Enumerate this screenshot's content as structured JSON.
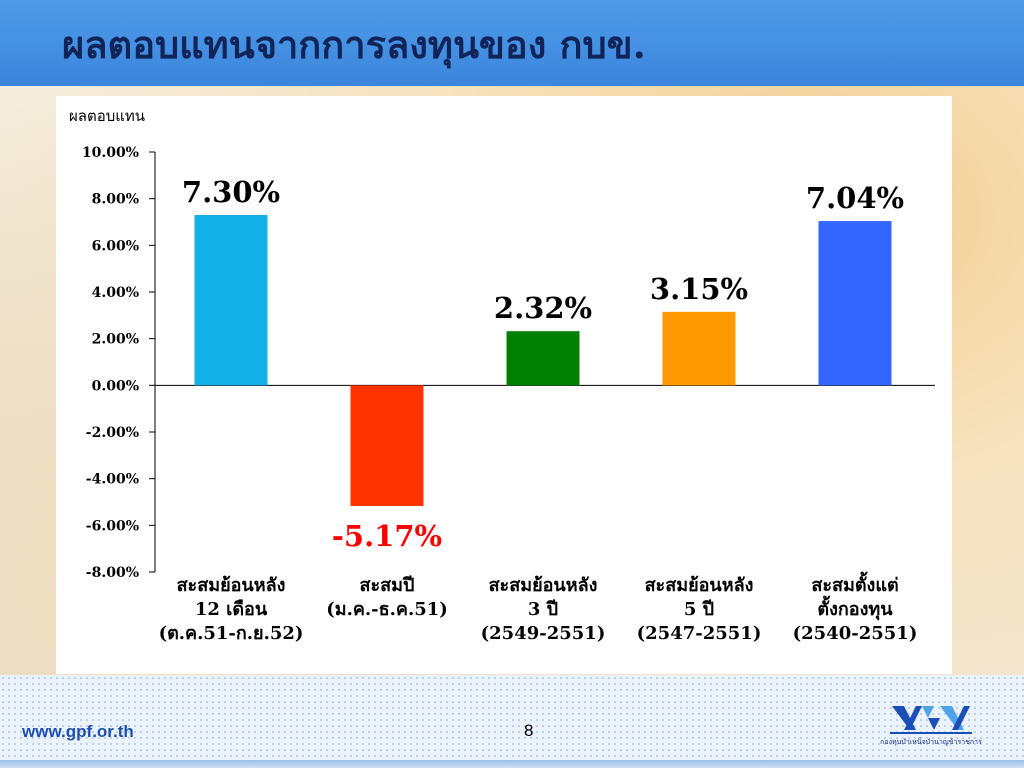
{
  "title": "ผลตอบแทนจากการลงทุนของ กบข.",
  "footer": {
    "url": "www.gpf.or.th",
    "page_number": "8"
  },
  "logo": {
    "icon": "gpf-logo-icon",
    "caption": "กองทุนบำเหน็จบำนาญข้าราชการ"
  },
  "chart_data": {
    "type": "bar",
    "ylabel": "ผลตอบแทน",
    "ylim": [
      -8,
      10
    ],
    "yticks": [
      "10.00%",
      "8.00%",
      "6.00%",
      "4.00%",
      "2.00%",
      "0.00%",
      "-2.00%",
      "-4.00%",
      "-6.00%",
      "-8.00%"
    ],
    "ytick_values": [
      10,
      8,
      6,
      4,
      2,
      0,
      -2,
      -4,
      -6,
      -8
    ],
    "categories": [
      [
        "สะสมย้อนหลัง",
        "12 เดือน",
        "(ต.ค.51-ก.ย.52)"
      ],
      [
        "สะสมปี",
        "(ม.ค.-ธ.ค.51)"
      ],
      [
        "สะสมย้อนหลัง",
        "3 ปี",
        "(2549-2551)"
      ],
      [
        "สะสมย้อนหลัง",
        "5 ปี",
        "(2547-2551)"
      ],
      [
        "สะสมตั้งแต่",
        "ตั้งกองทุน",
        "(2540-2551)"
      ]
    ],
    "values": [
      7.3,
      -5.17,
      2.32,
      3.15,
      7.04
    ],
    "data_labels": [
      "7.30%",
      "-5.17%",
      "2.32%",
      "3.15%",
      "7.04%"
    ],
    "colors": [
      "#13b0e8",
      "#ff3300",
      "#008000",
      "#ff9900",
      "#3366ff"
    ],
    "label_colors": [
      "#000000",
      "#ff0000",
      "#000000",
      "#000000",
      "#000000"
    ],
    "grid": false,
    "legend": "none"
  }
}
